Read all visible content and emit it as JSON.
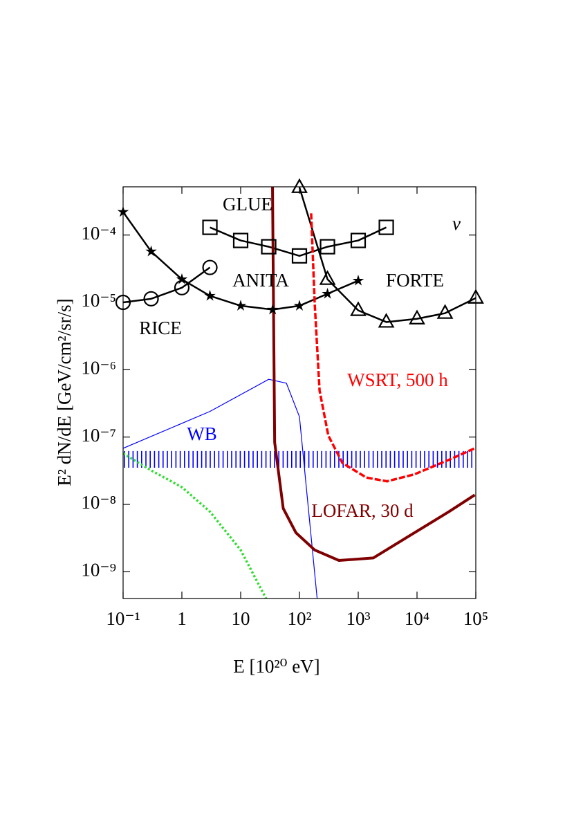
{
  "chart_data": {
    "type": "line",
    "xlabel": "E [10²⁰ eV]",
    "ylabel": "E² dN/dE [GeV/cm²/sr/s]",
    "log_x": true,
    "log_y": true,
    "xlim": [
      0.1,
      100000
    ],
    "ylim": [
      4e-10,
      0.00052
    ],
    "xticks": [
      {
        "value": 0.1,
        "label": "10⁻¹"
      },
      1,
      10,
      {
        "value": 100,
        "label": "10²"
      },
      {
        "value": 1000,
        "label": "10³"
      },
      {
        "value": 10000,
        "label": "10⁴"
      },
      {
        "value": 100000,
        "label": "10⁵"
      }
    ],
    "yticks": [
      {
        "value": 1e-09,
        "label": "10⁻⁹"
      },
      {
        "value": 1e-08,
        "label": "10⁻⁸"
      },
      {
        "value": 1e-07,
        "label": "10⁻⁷"
      },
      {
        "value": 1e-06,
        "label": "10⁻⁶"
      },
      {
        "value": 1e-05,
        "label": "10⁻⁵"
      },
      {
        "value": 0.0001,
        "label": "10⁻⁴"
      }
    ],
    "annotations": [
      "ν"
    ],
    "band": {
      "name": "WB",
      "color": "#0000ff",
      "low": 3.5e-08,
      "high": 6.2e-08
    },
    "series": [
      {
        "name": "RICE",
        "color": "#000000",
        "marker": "circle",
        "dash": "solid",
        "linewidth": 2.5,
        "x": [
          0.1,
          0.3,
          1,
          3
        ],
        "values": [
          1e-05,
          1.13e-05,
          1.65e-05,
          3.3e-05
        ]
      },
      {
        "name": "ANITA",
        "color": "#000000",
        "marker": "star",
        "dash": "solid",
        "linewidth": 2.5,
        "x": [
          0.1,
          0.3,
          1,
          3,
          10,
          35,
          100,
          300,
          1000
        ],
        "values": [
          0.00022,
          5.7e-05,
          2.2e-05,
          1.25e-05,
          8.9e-06,
          7.8e-06,
          8.9e-06,
          1.34e-05,
          2.1e-05
        ]
      },
      {
        "name": "GLUE",
        "color": "#000000",
        "marker": "square",
        "dash": "solid",
        "linewidth": 2.5,
        "x": [
          3,
          10,
          30,
          100,
          300,
          1000,
          3000
        ],
        "values": [
          0.00013,
          8.3e-05,
          6.7e-05,
          4.9e-05,
          6.7e-05,
          8.3e-05,
          0.00013
        ]
      },
      {
        "name": "FORTE",
        "color": "#000000",
        "marker": "triangle",
        "dash": "solid",
        "linewidth": 2.5,
        "x": [
          100,
          300,
          1000,
          3000,
          10000,
          30000,
          100000
        ],
        "values": [
          0.00051,
          2.2e-05,
          7.6e-06,
          5.1e-06,
          5.7e-06,
          6.9e-06,
          1.16e-05
        ]
      },
      {
        "color": "#0000ff",
        "dash": "solid",
        "linewidth": 1.2,
        "x": [
          0.1,
          3,
          30,
          60,
          100,
          200
        ],
        "values": [
          6.8e-08,
          2.4e-07,
          7.2e-07,
          6.3e-07,
          2e-07,
          4e-10
        ]
      },
      {
        "name": "WSRT, 500 h",
        "color": "#ff0000",
        "dash": "dashed",
        "linewidth": 3.5,
        "x": [
          158,
          182,
          220,
          310,
          540,
          1380,
          3100,
          9100,
          35000,
          96000
        ],
        "values": [
          0.00021,
          9.4e-06,
          4.9e-07,
          1.05e-07,
          4.1e-08,
          2.5e-08,
          2.2e-08,
          2.8e-08,
          4.6e-08,
          6.8e-08
        ]
      },
      {
        "name": "LOFAR, 30 d",
        "color": "#800000",
        "dash": "solid",
        "linewidth": 4,
        "x": [
          34.8,
          37.9,
          53,
          87,
          182,
          470,
          1800,
          9100,
          35000,
          96000
        ],
        "values": [
          0.00052,
          8.3e-08,
          8.7e-09,
          3.8e-09,
          2.1e-09,
          1.47e-09,
          1.6e-09,
          3.8e-09,
          7.8e-09,
          1.38e-08
        ]
      },
      {
        "color": "#33dd33",
        "dash": "dotted",
        "linewidth": 3.5,
        "x": [
          0.1,
          0.3,
          1,
          3,
          10,
          27
        ],
        "values": [
          5.7e-08,
          3.2e-08,
          1.8e-08,
          7.8e-09,
          2.1e-09,
          4e-10
        ]
      }
    ]
  }
}
